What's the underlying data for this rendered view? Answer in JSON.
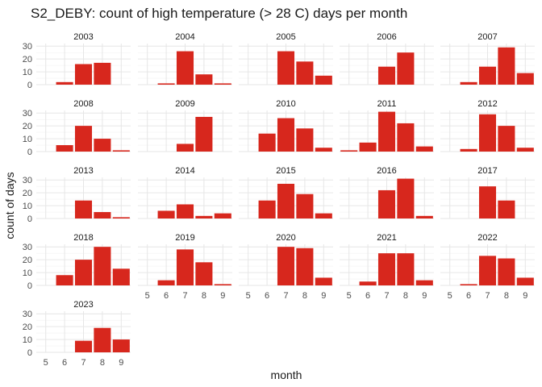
{
  "chart_data": {
    "type": "bar",
    "title": "S2_DEBY: count of high temperature (> 28 C) days per month",
    "xlabel": "month",
    "ylabel": "count of days",
    "categories": [
      "5",
      "6",
      "7",
      "8",
      "9"
    ],
    "ylim": [
      0,
      32
    ],
    "yticks": [
      0,
      10,
      20,
      30
    ],
    "bar_color": "#d7271d",
    "panels": [
      {
        "name": "2003",
        "values": [
          0,
          2,
          16,
          17,
          0
        ]
      },
      {
        "name": "2004",
        "values": [
          0,
          1,
          26,
          8,
          1
        ]
      },
      {
        "name": "2005",
        "values": [
          0,
          0,
          26,
          18,
          7
        ]
      },
      {
        "name": "2006",
        "values": [
          0,
          0,
          14,
          25,
          0
        ]
      },
      {
        "name": "2007",
        "values": [
          0,
          2,
          14,
          29,
          9
        ]
      },
      {
        "name": "2008",
        "values": [
          0,
          5,
          20,
          10,
          1
        ]
      },
      {
        "name": "2009",
        "values": [
          0,
          0,
          6,
          27,
          0
        ]
      },
      {
        "name": "2010",
        "values": [
          0,
          14,
          26,
          18,
          3
        ]
      },
      {
        "name": "2011",
        "values": [
          1,
          7,
          31,
          22,
          4
        ]
      },
      {
        "name": "2012",
        "values": [
          0,
          2,
          29,
          20,
          3
        ]
      },
      {
        "name": "2013",
        "values": [
          0,
          0,
          14,
          5,
          1
        ]
      },
      {
        "name": "2014",
        "values": [
          0,
          6,
          11,
          2,
          4
        ]
      },
      {
        "name": "2015",
        "values": [
          0,
          14,
          27,
          19,
          4
        ]
      },
      {
        "name": "2016",
        "values": [
          0,
          0,
          22,
          31,
          2
        ]
      },
      {
        "name": "2017",
        "values": [
          0,
          0,
          25,
          14,
          0
        ]
      },
      {
        "name": "2018",
        "values": [
          0,
          8,
          20,
          30,
          13
        ]
      },
      {
        "name": "2019",
        "values": [
          0,
          4,
          28,
          18,
          1
        ]
      },
      {
        "name": "2020",
        "values": [
          0,
          0,
          30,
          29,
          6
        ]
      },
      {
        "name": "2021",
        "values": [
          0,
          3,
          25,
          25,
          4
        ]
      },
      {
        "name": "2022",
        "values": [
          0,
          1,
          23,
          21,
          6
        ]
      },
      {
        "name": "2023",
        "values": [
          0,
          0,
          9,
          19,
          10
        ]
      }
    ]
  }
}
